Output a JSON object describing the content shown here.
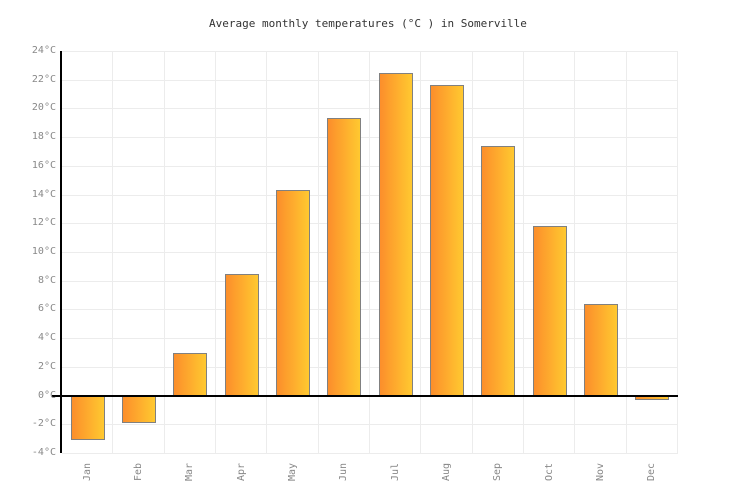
{
  "page": {
    "background": "#ffffff"
  },
  "chart_data": {
    "type": "bar",
    "title": "Average monthly temperatures (°C ) in Somerville",
    "categories": [
      "Jan",
      "Feb",
      "Mar",
      "Apr",
      "May",
      "Jun",
      "Jul",
      "Aug",
      "Sep",
      "Oct",
      "Nov",
      "Dec"
    ],
    "values": [
      -3.1,
      -1.9,
      3.0,
      8.5,
      14.3,
      19.3,
      22.5,
      21.6,
      17.4,
      11.8,
      6.4,
      -0.3
    ],
    "xlabel": "",
    "ylabel": "",
    "ylim": [
      -4,
      24
    ],
    "ytick_step": 2,
    "ytick_suffix": "°C",
    "grid": true,
    "legend": false,
    "zero_baseline": true,
    "colors": {
      "bar_gradient_left": "#FC8E2B",
      "bar_gradient_right": "#FFC930",
      "bar_border": "#808080",
      "axis_line": "#000000",
      "gridline": "#ECECEC",
      "tick_text": "#888888",
      "title_text": "#333333",
      "background": "#FFFFFF"
    }
  }
}
